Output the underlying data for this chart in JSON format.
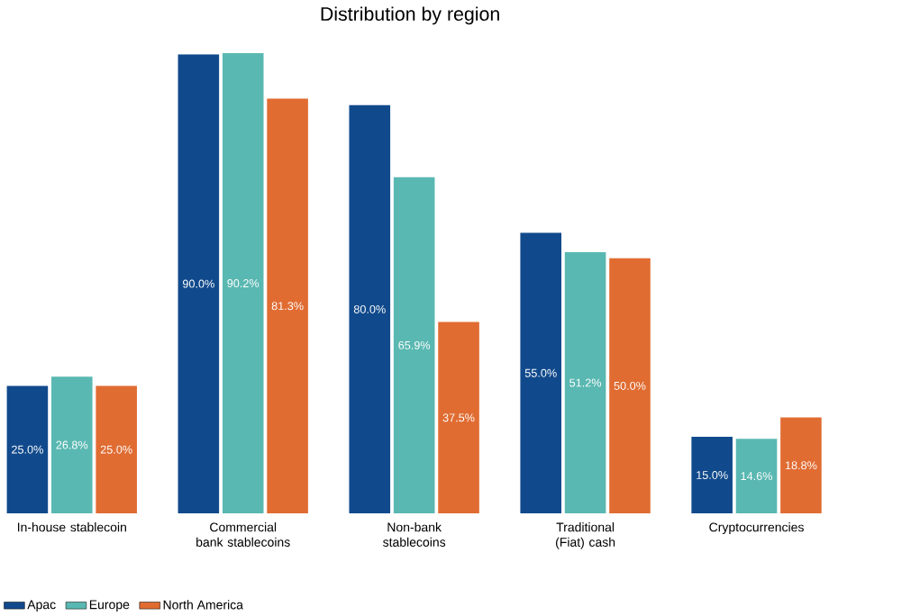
{
  "chart_data": {
    "type": "bar",
    "title": "Distribution by region",
    "categories": [
      "In-house stablecoin",
      "Commercial bank stablecoins",
      "Non-bank stablecoins",
      "Traditional (Fiat) cash",
      "Cryptocurrencies"
    ],
    "series": [
      {
        "name": "Apac",
        "color": "#114a8c",
        "values": [
          25.0,
          90.0,
          80.0,
          55.0,
          15.0
        ],
        "value_labels": [
          "25.0%",
          "90.0%",
          "80.0%",
          "55.0%",
          "15.0%"
        ]
      },
      {
        "name": "Europe",
        "color": "#5ab8b2",
        "values": [
          26.8,
          90.2,
          65.9,
          51.2,
          14.6
        ],
        "value_labels": [
          "26.8%",
          "90.2%",
          "65.9%",
          "51.2%",
          "14.6%"
        ]
      },
      {
        "name": "North America",
        "color": "#e06c32",
        "values": [
          25.0,
          81.3,
          37.5,
          50.0,
          18.8
        ],
        "value_labels": [
          "25.0%",
          "81.3%",
          "37.5%",
          "50.0%",
          "18.8%"
        ]
      }
    ],
    "legend": "bottom left"
  }
}
